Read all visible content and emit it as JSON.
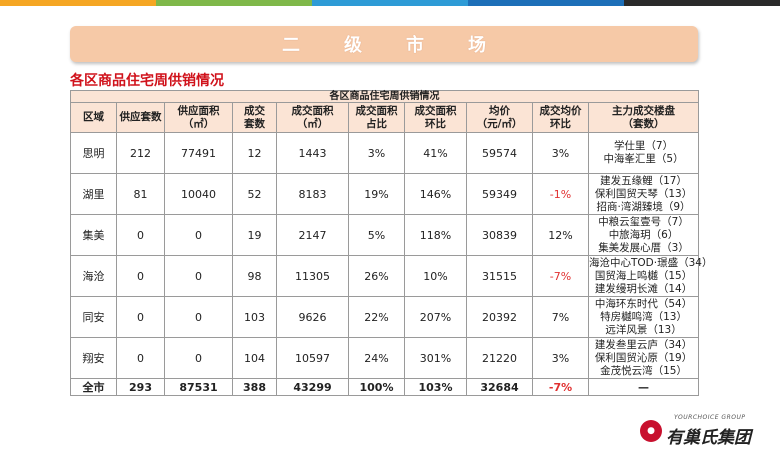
{
  "top_bar_colors": [
    "#f5a623",
    "#7fb84a",
    "#2e9bd6",
    "#1d6fb8",
    "#2a2a2a"
  ],
  "banner": {
    "title": "二级市场"
  },
  "section_title": "各区商品住宅周供销情况",
  "table": {
    "caption": "各区商品住宅周供销情况",
    "headers": [
      "区域",
      "供应套数",
      "供应面积\n（㎡）",
      "成交\n套数",
      "成交面积\n（㎡）",
      "成交面积\n占比",
      "成交面积\n环比",
      "均价\n（元/㎡）",
      "成交均价\n环比",
      "主力成交楼盘\n（套数）"
    ],
    "rows": [
      {
        "district": "思明",
        "supply_units": "212",
        "supply_area": "77491",
        "deal_units": "12",
        "deal_area": "1443",
        "area_share": "3%",
        "area_mom": "41%",
        "avg_price": "59574",
        "price_mom": "3%",
        "projects": [
          "学仕里（7）",
          "中海峯汇里（5）"
        ]
      },
      {
        "district": "湖里",
        "supply_units": "81",
        "supply_area": "10040",
        "deal_units": "52",
        "deal_area": "8183",
        "area_share": "19%",
        "area_mom": "146%",
        "avg_price": "59349",
        "price_mom": "-1%",
        "projects": [
          "建发五缘鲤（17）",
          "保利国贸天琴（13）",
          "招商·湾湖臻境（9）"
        ]
      },
      {
        "district": "集美",
        "supply_units": "0",
        "supply_area": "0",
        "deal_units": "19",
        "deal_area": "2147",
        "area_share": "5%",
        "area_mom": "118%",
        "avg_price": "30839",
        "price_mom": "12%",
        "projects": [
          "中粮云玺壹号（7）",
          "中旅海玥（6）",
          "集美发展心厝（3）"
        ]
      },
      {
        "district": "海沧",
        "supply_units": "0",
        "supply_area": "0",
        "deal_units": "98",
        "deal_area": "11305",
        "area_share": "26%",
        "area_mom": "10%",
        "avg_price": "31515",
        "price_mom": "-7%",
        "projects": [
          "海沧中心TOD·璟盛（34）",
          "国贸海上鸣樾（15）",
          "建发缦玥长滩（14）"
        ]
      },
      {
        "district": "同安",
        "supply_units": "0",
        "supply_area": "0",
        "deal_units": "103",
        "deal_area": "9626",
        "area_share": "22%",
        "area_mom": "207%",
        "avg_price": "20392",
        "price_mom": "7%",
        "projects": [
          "中海环东时代（54）",
          "特房樾鸣湾（13）",
          "远洋风景（13）"
        ]
      },
      {
        "district": "翔安",
        "supply_units": "0",
        "supply_area": "0",
        "deal_units": "104",
        "deal_area": "10597",
        "area_share": "24%",
        "area_mom": "301%",
        "avg_price": "21220",
        "price_mom": "3%",
        "projects": [
          "建发叁里云庐（34）",
          "保利国贸沁原（19）",
          "金茂悦云湾（15）"
        ]
      }
    ],
    "total": {
      "district": "全市",
      "supply_units": "293",
      "supply_area": "87531",
      "deal_units": "388",
      "deal_area": "43299",
      "area_share": "100%",
      "area_mom": "103%",
      "avg_price": "32684",
      "price_mom": "-7%",
      "projects": "—"
    }
  },
  "logo": {
    "en": "YOURCHOICE GROUP",
    "cn": "有巢氏集团"
  }
}
